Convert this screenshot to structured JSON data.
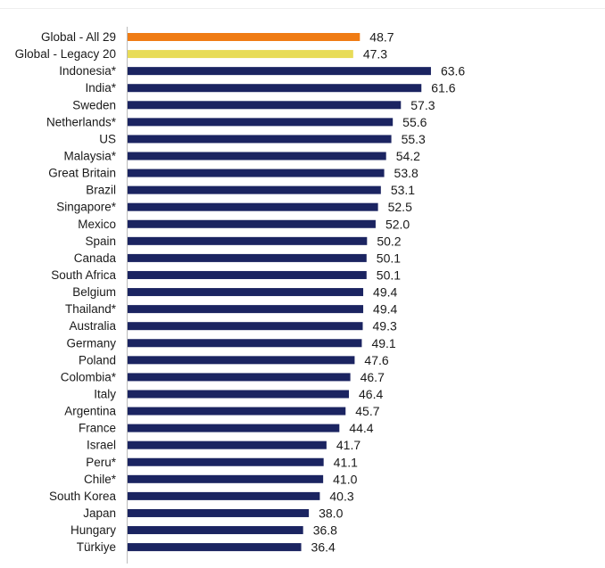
{
  "chart_data": {
    "type": "bar",
    "orientation": "horizontal",
    "title": "",
    "xlabel": "",
    "ylabel": "",
    "categories": [
      "Global - All 29",
      "Global - Legacy 20",
      "Indonesia*",
      "India*",
      "Sweden",
      "Netherlands*",
      "US",
      "Malaysia*",
      "Great Britain",
      "Brazil",
      "Singapore*",
      "Mexico",
      "Spain",
      "Canada",
      "South Africa",
      "Belgium",
      "Thailand*",
      "Australia",
      "Germany",
      "Poland",
      "Colombia*",
      "Italy",
      "Argentina",
      "France",
      "Israel",
      "Peru*",
      "Chile*",
      "South Korea",
      "Japan",
      "Hungary",
      "Türkiye"
    ],
    "values": [
      48.7,
      47.3,
      63.6,
      61.6,
      57.3,
      55.6,
      55.3,
      54.2,
      53.8,
      53.1,
      52.5,
      52.0,
      50.2,
      50.1,
      50.1,
      49.4,
      49.4,
      49.3,
      49.1,
      47.6,
      46.7,
      46.4,
      45.7,
      44.4,
      41.7,
      41.1,
      41.0,
      40.3,
      38.0,
      36.8,
      36.4
    ],
    "value_labels": [
      "48.7",
      "47.3",
      "63.6",
      "61.6",
      "57.3",
      "55.6",
      "55.3",
      "54.2",
      "53.8",
      "53.1",
      "52.5",
      "52.0",
      "50.2",
      "50.1",
      "50.1",
      "49.4",
      "49.4",
      "49.3",
      "49.1",
      "47.6",
      "46.7",
      "46.4",
      "45.7",
      "44.4",
      "41.7",
      "41.1",
      "41.0",
      "40.3",
      "38.0",
      "36.8",
      "36.4"
    ],
    "bar_colors": [
      "#f07c14",
      "#e8dc58",
      "#1b2461",
      "#1b2461",
      "#1b2461",
      "#1b2461",
      "#1b2461",
      "#1b2461",
      "#1b2461",
      "#1b2461",
      "#1b2461",
      "#1b2461",
      "#1b2461",
      "#1b2461",
      "#1b2461",
      "#1b2461",
      "#1b2461",
      "#1b2461",
      "#1b2461",
      "#1b2461",
      "#1b2461",
      "#1b2461",
      "#1b2461",
      "#1b2461",
      "#1b2461",
      "#1b2461",
      "#1b2461",
      "#1b2461",
      "#1b2461",
      "#1b2461",
      "#1b2461"
    ],
    "xlim": [
      0,
      80
    ],
    "grid": false,
    "legend": "none"
  }
}
